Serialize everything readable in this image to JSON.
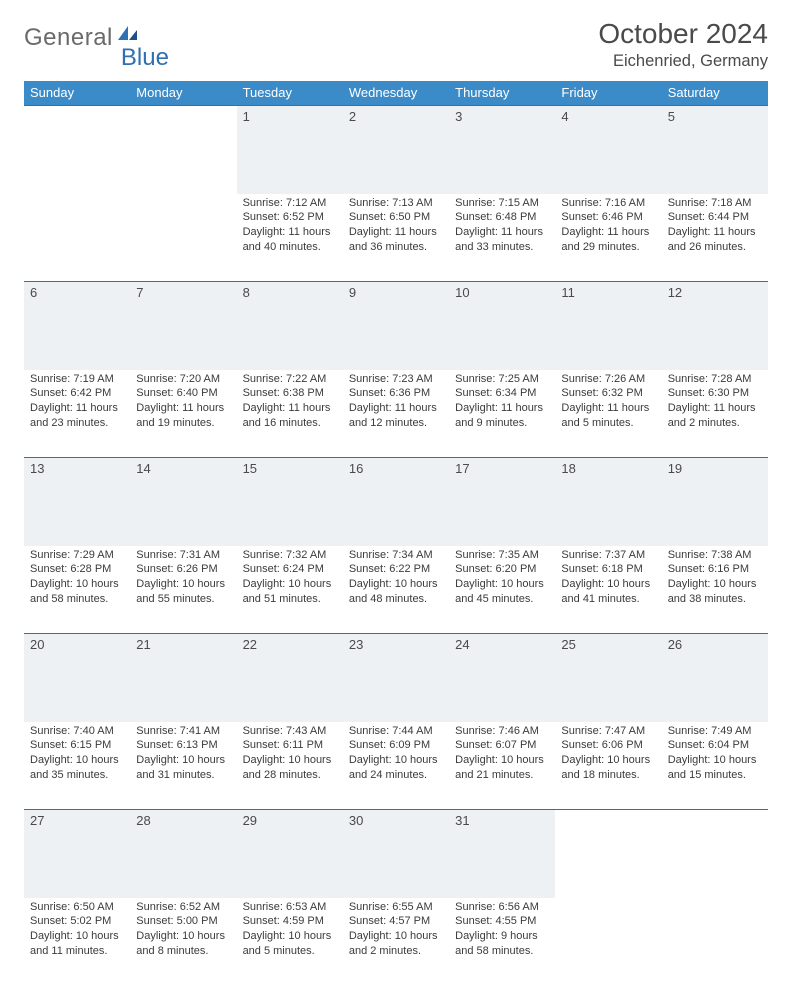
{
  "brand": {
    "text1": "General",
    "text2": "Blue"
  },
  "title": "October 2024",
  "location": "Eichenried, Germany",
  "colors": {
    "header_bg": "#3b8bc9",
    "header_text": "#ffffff",
    "daynum_bg": "#eef1f3",
    "rule": "#2f6fb3",
    "body_text": "#3b3b3b",
    "title_text": "#4a4a4a",
    "brand_gray": "#6a6a6a",
    "brand_blue": "#2f6fb3",
    "page_bg": "#ffffff"
  },
  "daysOfWeek": [
    "Sunday",
    "Monday",
    "Tuesday",
    "Wednesday",
    "Thursday",
    "Friday",
    "Saturday"
  ],
  "weeks": [
    [
      null,
      null,
      {
        "n": "1",
        "sr": "7:12 AM",
        "ss": "6:52 PM",
        "dl": "11 hours and 40 minutes."
      },
      {
        "n": "2",
        "sr": "7:13 AM",
        "ss": "6:50 PM",
        "dl": "11 hours and 36 minutes."
      },
      {
        "n": "3",
        "sr": "7:15 AM",
        "ss": "6:48 PM",
        "dl": "11 hours and 33 minutes."
      },
      {
        "n": "4",
        "sr": "7:16 AM",
        "ss": "6:46 PM",
        "dl": "11 hours and 29 minutes."
      },
      {
        "n": "5",
        "sr": "7:18 AM",
        "ss": "6:44 PM",
        "dl": "11 hours and 26 minutes."
      }
    ],
    [
      {
        "n": "6",
        "sr": "7:19 AM",
        "ss": "6:42 PM",
        "dl": "11 hours and 23 minutes."
      },
      {
        "n": "7",
        "sr": "7:20 AM",
        "ss": "6:40 PM",
        "dl": "11 hours and 19 minutes."
      },
      {
        "n": "8",
        "sr": "7:22 AM",
        "ss": "6:38 PM",
        "dl": "11 hours and 16 minutes."
      },
      {
        "n": "9",
        "sr": "7:23 AM",
        "ss": "6:36 PM",
        "dl": "11 hours and 12 minutes."
      },
      {
        "n": "10",
        "sr": "7:25 AM",
        "ss": "6:34 PM",
        "dl": "11 hours and 9 minutes."
      },
      {
        "n": "11",
        "sr": "7:26 AM",
        "ss": "6:32 PM",
        "dl": "11 hours and 5 minutes."
      },
      {
        "n": "12",
        "sr": "7:28 AM",
        "ss": "6:30 PM",
        "dl": "11 hours and 2 minutes."
      }
    ],
    [
      {
        "n": "13",
        "sr": "7:29 AM",
        "ss": "6:28 PM",
        "dl": "10 hours and 58 minutes."
      },
      {
        "n": "14",
        "sr": "7:31 AM",
        "ss": "6:26 PM",
        "dl": "10 hours and 55 minutes."
      },
      {
        "n": "15",
        "sr": "7:32 AM",
        "ss": "6:24 PM",
        "dl": "10 hours and 51 minutes."
      },
      {
        "n": "16",
        "sr": "7:34 AM",
        "ss": "6:22 PM",
        "dl": "10 hours and 48 minutes."
      },
      {
        "n": "17",
        "sr": "7:35 AM",
        "ss": "6:20 PM",
        "dl": "10 hours and 45 minutes."
      },
      {
        "n": "18",
        "sr": "7:37 AM",
        "ss": "6:18 PM",
        "dl": "10 hours and 41 minutes."
      },
      {
        "n": "19",
        "sr": "7:38 AM",
        "ss": "6:16 PM",
        "dl": "10 hours and 38 minutes."
      }
    ],
    [
      {
        "n": "20",
        "sr": "7:40 AM",
        "ss": "6:15 PM",
        "dl": "10 hours and 35 minutes."
      },
      {
        "n": "21",
        "sr": "7:41 AM",
        "ss": "6:13 PM",
        "dl": "10 hours and 31 minutes."
      },
      {
        "n": "22",
        "sr": "7:43 AM",
        "ss": "6:11 PM",
        "dl": "10 hours and 28 minutes."
      },
      {
        "n": "23",
        "sr": "7:44 AM",
        "ss": "6:09 PM",
        "dl": "10 hours and 24 minutes."
      },
      {
        "n": "24",
        "sr": "7:46 AM",
        "ss": "6:07 PM",
        "dl": "10 hours and 21 minutes."
      },
      {
        "n": "25",
        "sr": "7:47 AM",
        "ss": "6:06 PM",
        "dl": "10 hours and 18 minutes."
      },
      {
        "n": "26",
        "sr": "7:49 AM",
        "ss": "6:04 PM",
        "dl": "10 hours and 15 minutes."
      }
    ],
    [
      {
        "n": "27",
        "sr": "6:50 AM",
        "ss": "5:02 PM",
        "dl": "10 hours and 11 minutes."
      },
      {
        "n": "28",
        "sr": "6:52 AM",
        "ss": "5:00 PM",
        "dl": "10 hours and 8 minutes."
      },
      {
        "n": "29",
        "sr": "6:53 AM",
        "ss": "4:59 PM",
        "dl": "10 hours and 5 minutes."
      },
      {
        "n": "30",
        "sr": "6:55 AM",
        "ss": "4:57 PM",
        "dl": "10 hours and 2 minutes."
      },
      {
        "n": "31",
        "sr": "6:56 AM",
        "ss": "4:55 PM",
        "dl": "9 hours and 58 minutes."
      },
      null,
      null
    ]
  ],
  "labels": {
    "sunrise": "Sunrise:",
    "sunset": "Sunset:",
    "daylight": "Daylight:"
  }
}
